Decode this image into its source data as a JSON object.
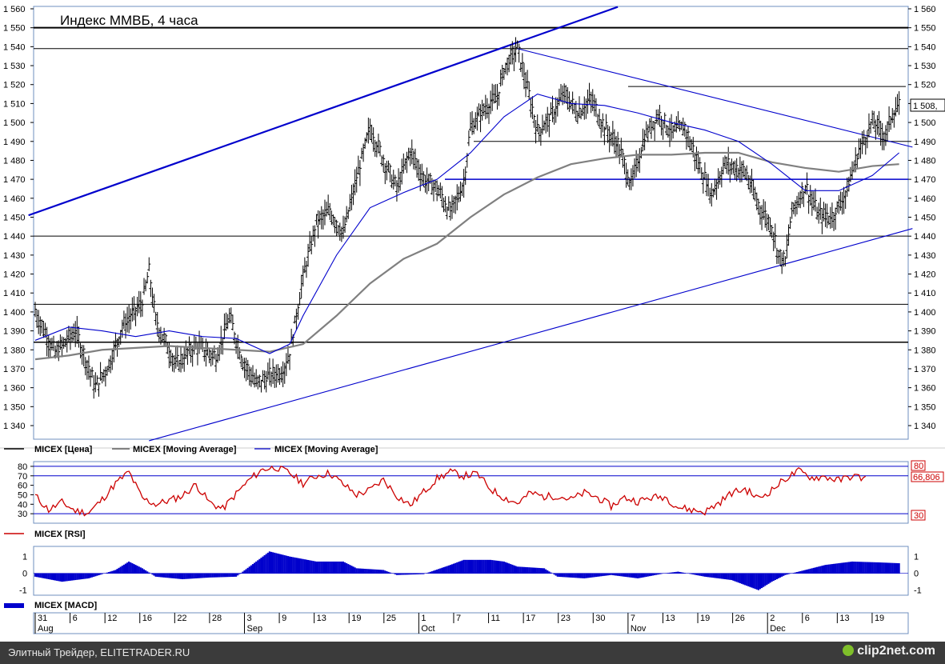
{
  "page": {
    "title": "Индекс ММВБ, 4 часа",
    "footer_left": "Элитный Трейдер, ELITETRADER.RU",
    "footer_right": "clip2net.com"
  },
  "chart_data": [
    {
      "panel": "price",
      "type": "line",
      "title": "Индекс ММВБ, 4 часа",
      "ylim": [
        1330,
        1560
      ],
      "yticks": [
        1340,
        1350,
        1360,
        1370,
        1380,
        1390,
        1400,
        1410,
        1420,
        1430,
        1440,
        1450,
        1460,
        1470,
        1480,
        1490,
        1500,
        1510,
        1520,
        1530,
        1540,
        1550,
        1560
      ],
      "ytick_labels": [
        "1 340",
        "1 350",
        "1 360",
        "1 370",
        "1 380",
        "1 390",
        "1 400",
        "1 410",
        "1 420",
        "1 430",
        "1 440",
        "1 450",
        "1 460",
        "1 470",
        "1 480",
        "1 490",
        "1 500",
        "1 510",
        "1 520",
        "1 530",
        "1 540",
        "1 550",
        "1 560"
      ],
      "last_value_label": "1 508,",
      "legend": [
        "MICEX [Цена]",
        "MICEX [Moving Average]",
        "MICEX [Moving Average]"
      ],
      "legend_colors": [
        "#000000",
        "#808080",
        "#0000cc"
      ],
      "horizontal_levels": [
        1550,
        1539,
        1519,
        1490,
        1470,
        1440,
        1404,
        1384
      ],
      "price_path": [
        [
          0,
          1400
        ],
        [
          3,
          1378
        ],
        [
          6,
          1390
        ],
        [
          9,
          1360
        ],
        [
          11,
          1372
        ],
        [
          13,
          1392
        ],
        [
          16,
          1405
        ],
        [
          17,
          1421
        ],
        [
          18,
          1395
        ],
        [
          21,
          1372
        ],
        [
          24,
          1382
        ],
        [
          27,
          1376
        ],
        [
          29,
          1397
        ],
        [
          31,
          1374
        ],
        [
          33,
          1362
        ],
        [
          35,
          1366
        ],
        [
          37,
          1369
        ],
        [
          38,
          1378
        ],
        [
          40,
          1418
        ],
        [
          42,
          1447
        ],
        [
          44,
          1453
        ],
        [
          46,
          1441
        ],
        [
          48,
          1470
        ],
        [
          50,
          1497
        ],
        [
          52,
          1480
        ],
        [
          54,
          1465
        ],
        [
          56,
          1485
        ],
        [
          58,
          1470
        ],
        [
          60,
          1465
        ],
        [
          62,
          1452
        ],
        [
          64,
          1468
        ],
        [
          65,
          1497
        ],
        [
          67,
          1507
        ],
        [
          69,
          1513
        ],
        [
          70,
          1528
        ],
        [
          71,
          1534
        ],
        [
          72,
          1539
        ],
        [
          73,
          1525
        ],
        [
          74,
          1510
        ],
        [
          75,
          1495
        ],
        [
          77,
          1503
        ],
        [
          79,
          1515
        ],
        [
          81,
          1505
        ],
        [
          83,
          1512
        ],
        [
          85,
          1497
        ],
        [
          87,
          1488
        ],
        [
          89,
          1467
        ],
        [
          91,
          1492
        ],
        [
          93,
          1504
        ],
        [
          95,
          1495
        ],
        [
          97,
          1497
        ],
        [
          99,
          1478
        ],
        [
          101,
          1462
        ],
        [
          103,
          1478
        ],
        [
          106,
          1474
        ],
        [
          108,
          1456
        ],
        [
          110,
          1445
        ],
        [
          111,
          1430
        ],
        [
          112,
          1426
        ],
        [
          113,
          1453
        ],
        [
          115,
          1466
        ],
        [
          117,
          1451
        ],
        [
          119,
          1450
        ],
        [
          121,
          1462
        ],
        [
          123,
          1485
        ],
        [
          125,
          1500
        ],
        [
          127,
          1493
        ],
        [
          128,
          1505
        ],
        [
          129,
          1508
        ]
      ],
      "ma_gray": [
        [
          0,
          1375
        ],
        [
          5,
          1377
        ],
        [
          10,
          1380
        ],
        [
          15,
          1381
        ],
        [
          20,
          1382
        ],
        [
          25,
          1381
        ],
        [
          30,
          1380
        ],
        [
          35,
          1379
        ],
        [
          40,
          1383
        ],
        [
          45,
          1398
        ],
        [
          50,
          1415
        ],
        [
          55,
          1428
        ],
        [
          60,
          1436
        ],
        [
          65,
          1450
        ],
        [
          70,
          1462
        ],
        [
          75,
          1471
        ],
        [
          80,
          1478
        ],
        [
          85,
          1481
        ],
        [
          90,
          1483
        ],
        [
          95,
          1483
        ],
        [
          100,
          1484
        ],
        [
          105,
          1484
        ],
        [
          110,
          1479
        ],
        [
          115,
          1476
        ],
        [
          120,
          1474
        ],
        [
          125,
          1477
        ],
        [
          129,
          1478
        ]
      ],
      "ma_blue": [
        [
          0,
          1385
        ],
        [
          5,
          1392
        ],
        [
          10,
          1390
        ],
        [
          15,
          1387
        ],
        [
          20,
          1390
        ],
        [
          25,
          1387
        ],
        [
          30,
          1386
        ],
        [
          35,
          1378
        ],
        [
          38,
          1383
        ],
        [
          40,
          1398
        ],
        [
          45,
          1430
        ],
        [
          50,
          1455
        ],
        [
          55,
          1463
        ],
        [
          60,
          1470
        ],
        [
          65,
          1484
        ],
        [
          70,
          1503
        ],
        [
          75,
          1515
        ],
        [
          80,
          1510
        ],
        [
          85,
          1509
        ],
        [
          90,
          1505
        ],
        [
          95,
          1500
        ],
        [
          100,
          1496
        ],
        [
          105,
          1490
        ],
        [
          110,
          1478
        ],
        [
          115,
          1464
        ],
        [
          120,
          1464
        ],
        [
          125,
          1472
        ],
        [
          129,
          1484
        ]
      ],
      "trendlines": [
        {
          "from": [
            -1,
            1451
          ],
          "to": [
            87,
            1561
          ]
        },
        {
          "from": [
            72,
            1539
          ],
          "to": [
            131,
            1487
          ]
        },
        {
          "from": [
            17,
            1332
          ],
          "to": [
            131,
            1444
          ]
        }
      ]
    },
    {
      "panel": "rsi",
      "type": "line",
      "legend": [
        "MICEX [RSI]"
      ],
      "ylim": [
        20,
        85
      ],
      "yticks": [
        30,
        40,
        50,
        60,
        70,
        80
      ],
      "ytick_labels": [
        "30",
        "40",
        "50",
        "60",
        "70",
        "80"
      ],
      "levels": [
        30,
        70,
        80
      ],
      "right_labels": [
        "80",
        "66,806",
        "30"
      ],
      "color": "#cc0000",
      "points": [
        [
          0,
          49
        ],
        [
          2,
          34
        ],
        [
          4,
          42
        ],
        [
          6,
          33
        ],
        [
          8,
          31
        ],
        [
          10,
          45
        ],
        [
          12,
          62
        ],
        [
          14,
          74
        ],
        [
          16,
          46
        ],
        [
          18,
          40
        ],
        [
          20,
          44
        ],
        [
          22,
          49
        ],
        [
          24,
          61
        ],
        [
          26,
          42
        ],
        [
          28,
          35
        ],
        [
          30,
          51
        ],
        [
          32,
          66
        ],
        [
          34,
          77
        ],
        [
          36,
          79
        ],
        [
          38,
          73
        ],
        [
          40,
          62
        ],
        [
          42,
          70
        ],
        [
          44,
          73
        ],
        [
          46,
          61
        ],
        [
          48,
          50
        ],
        [
          50,
          55
        ],
        [
          52,
          66
        ],
        [
          54,
          49
        ],
        [
          56,
          39
        ],
        [
          58,
          53
        ],
        [
          60,
          67
        ],
        [
          62,
          74
        ],
        [
          64,
          70
        ],
        [
          66,
          72
        ],
        [
          68,
          56
        ],
        [
          70,
          47
        ],
        [
          72,
          41
        ],
        [
          74,
          52
        ],
        [
          76,
          48
        ],
        [
          78,
          49
        ],
        [
          80,
          45
        ],
        [
          82,
          52
        ],
        [
          84,
          47
        ],
        [
          86,
          38
        ],
        [
          88,
          47
        ],
        [
          90,
          43
        ],
        [
          92,
          47
        ],
        [
          94,
          48
        ],
        [
          96,
          37
        ],
        [
          98,
          34
        ],
        [
          100,
          32
        ],
        [
          102,
          41
        ],
        [
          104,
          52
        ],
        [
          106,
          56
        ],
        [
          108,
          46
        ],
        [
          110,
          55
        ],
        [
          112,
          67
        ],
        [
          114,
          75
        ],
        [
          116,
          68
        ],
        [
          118,
          69
        ],
        [
          120,
          65
        ],
        [
          122,
          70
        ],
        [
          124,
          67
        ]
      ]
    },
    {
      "panel": "macd",
      "type": "area",
      "legend": [
        "MICEX [MACD]"
      ],
      "ylim": [
        -1.3,
        1.6
      ],
      "yticks": [
        -1,
        0,
        1
      ],
      "ytick_labels": [
        "-1",
        "0",
        "1"
      ],
      "color": "#0000cc",
      "points": [
        [
          0,
          -0.2
        ],
        [
          4,
          -0.5
        ],
        [
          8,
          -0.3
        ],
        [
          12,
          0.2
        ],
        [
          14,
          0.7
        ],
        [
          16,
          0.3
        ],
        [
          18,
          -0.2
        ],
        [
          22,
          -0.35
        ],
        [
          26,
          -0.25
        ],
        [
          30,
          -0.2
        ],
        [
          32,
          0.4
        ],
        [
          35,
          1.3
        ],
        [
          38,
          1.0
        ],
        [
          42,
          0.7
        ],
        [
          46,
          0.7
        ],
        [
          48,
          0.3
        ],
        [
          52,
          0.2
        ],
        [
          54,
          -0.1
        ],
        [
          58,
          -0.05
        ],
        [
          62,
          0.5
        ],
        [
          64,
          0.8
        ],
        [
          68,
          0.8
        ],
        [
          70,
          0.7
        ],
        [
          72,
          0.4
        ],
        [
          76,
          0.3
        ],
        [
          78,
          -0.2
        ],
        [
          82,
          -0.3
        ],
        [
          86,
          -0.1
        ],
        [
          90,
          -0.3
        ],
        [
          94,
          0
        ],
        [
          96,
          0.1
        ],
        [
          100,
          -0.2
        ],
        [
          104,
          -0.4
        ],
        [
          106,
          -0.7
        ],
        [
          108,
          -1.0
        ],
        [
          110,
          -0.5
        ],
        [
          112,
          -0.1
        ],
        [
          114,
          0.1
        ],
        [
          116,
          0.3
        ],
        [
          118,
          0.5
        ],
        [
          122,
          0.7
        ],
        [
          126,
          0.65
        ],
        [
          129,
          0.6
        ]
      ]
    }
  ],
  "x_axis": {
    "day_ticks": [
      {
        "x": 0,
        "label": "31"
      },
      {
        "x": 3,
        "label": "6"
      },
      {
        "x": 6,
        "label": "12"
      },
      {
        "x": 9,
        "label": "16"
      },
      {
        "x": 12,
        "label": "22"
      },
      {
        "x": 15,
        "label": "28"
      },
      {
        "x": 18,
        "label": "3"
      },
      {
        "x": 21,
        "label": "9"
      },
      {
        "x": 24,
        "label": "13"
      },
      {
        "x": 27,
        "label": "19"
      },
      {
        "x": 30,
        "label": "25"
      },
      {
        "x": 33,
        "label": "1"
      },
      {
        "x": 36,
        "label": "7"
      },
      {
        "x": 39,
        "label": "11"
      },
      {
        "x": 42,
        "label": "17"
      },
      {
        "x": 45,
        "label": "23"
      },
      {
        "x": 48,
        "label": "30"
      },
      {
        "x": 51,
        "label": "7"
      },
      {
        "x": 54,
        "label": "13"
      },
      {
        "x": 57,
        "label": "19"
      },
      {
        "x": 60,
        "label": "26"
      },
      {
        "x": 63,
        "label": "2"
      },
      {
        "x": 66,
        "label": "6"
      },
      {
        "x": 69,
        "label": "13"
      },
      {
        "x": 72,
        "label": "19"
      }
    ],
    "months": [
      {
        "x": 0,
        "label": "Aug"
      },
      {
        "x": 18,
        "label": "Sep"
      },
      {
        "x": 33,
        "label": "Oct"
      },
      {
        "x": 51,
        "label": "Nov"
      },
      {
        "x": 63,
        "label": "Dec"
      }
    ]
  }
}
